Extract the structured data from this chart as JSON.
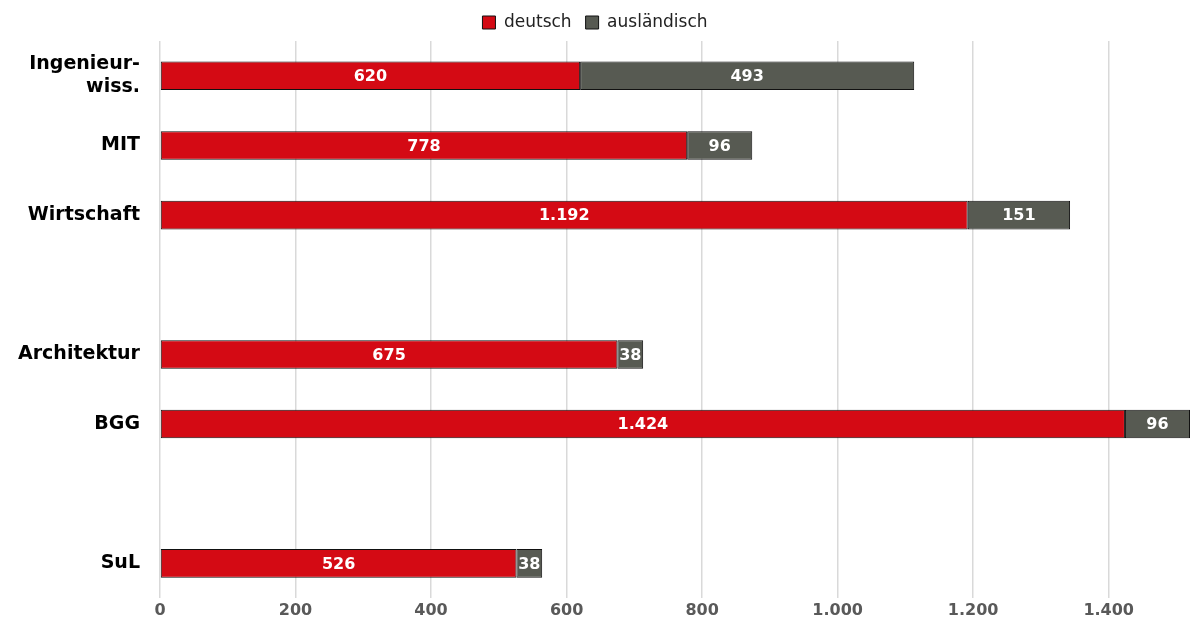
{
  "chart_data": {
    "type": "bar",
    "orientation": "horizontal",
    "stacked": true,
    "categories": [
      "Ingenieur-\nwiss.",
      "MIT",
      "Wirtschaft",
      null,
      "Architektur",
      "BGG",
      null,
      "SuL"
    ],
    "series": [
      {
        "name": "deutsch",
        "color": "#d40a14",
        "values": [
          620,
          778,
          1192,
          null,
          675,
          1424,
          null,
          526
        ],
        "value_labels": [
          "620",
          "778",
          "1.192",
          null,
          "675",
          "1.424",
          null,
          "526"
        ]
      },
      {
        "name": "ausländisch",
        "color": "#575a52",
        "values": [
          493,
          96,
          151,
          null,
          38,
          96,
          null,
          38
        ],
        "value_labels": [
          "493",
          "96",
          "151",
          null,
          "38",
          "96",
          null,
          "38"
        ]
      }
    ],
    "xlim": [
      0,
      1520
    ],
    "xticks": [
      0,
      200,
      400,
      600,
      800,
      {
        "value": 1000,
        "label": "1.000"
      },
      {
        "value": 1200,
        "label": "1.200"
      },
      {
        "value": 1400,
        "label": "1.400"
      }
    ],
    "grid": "x",
    "legend": "top"
  }
}
